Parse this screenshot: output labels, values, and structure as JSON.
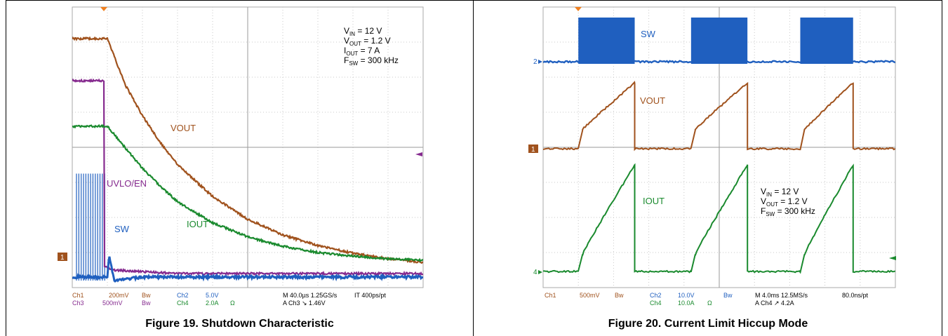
{
  "figures": [
    {
      "caption": "Figure 19. Shutdown Characteristic",
      "conditions": [
        "VIN = 12 V",
        "VOUT = 1.2 V",
        "IOUT = 7 A",
        "FSW = 300 kHz"
      ],
      "traces": [
        {
          "name": "VOUT",
          "color": "#a0521d"
        },
        {
          "name": "UVLO/EN",
          "color": "#862b8f"
        },
        {
          "name": "IOUT",
          "color": "#1a8a2e"
        },
        {
          "name": "SW",
          "color": "#1f5fbf"
        }
      ],
      "markers": [
        "1"
      ],
      "status_row1": [
        "Ch1",
        "200mV",
        "Bw",
        "Ch2",
        "5.0V",
        "M 40.0µs 1.25GS/s",
        "IT 400ps/pt"
      ],
      "status_row2": [
        "Ch3",
        "500mV",
        "Bw",
        "Ch4",
        "2.0A",
        "Ω",
        "A  Ch3  ↘  1.46V"
      ]
    },
    {
      "caption": "Figure 20. Current Limit Hiccup Mode",
      "conditions": [
        "VIN = 12 V",
        "VOUT = 1.2 V",
        "FSW = 300 kHz"
      ],
      "traces": [
        {
          "name": "SW",
          "color": "#1f5fbf"
        },
        {
          "name": "VOUT",
          "color": "#a0521d"
        },
        {
          "name": "IOUT",
          "color": "#1a8a2e"
        }
      ],
      "markers": [
        "2",
        "1",
        "4"
      ],
      "status_row1": [
        "Ch1",
        "500mV",
        "Bw",
        "Ch2",
        "10.0V",
        "Bw",
        "M 4.0ms 12.5MS/s",
        "80.0ns/pt"
      ],
      "status_row2": [
        "Ch4",
        "10.0A",
        "Ω",
        "A  Ch4  ↗  4.2A"
      ]
    }
  ],
  "chart_data": [
    {
      "type": "line",
      "title": "Figure 19. Shutdown Characteristic",
      "x_unit": "div (40.0 µs/div)",
      "x_range": [
        0,
        10
      ],
      "y_range": [
        0,
        8
      ],
      "series": [
        {
          "name": "VOUT",
          "points": [
            [
              0,
              7.1
            ],
            [
              1,
              7.1
            ],
            [
              1.5,
              5.8
            ],
            [
              2,
              4.9
            ],
            [
              2.5,
              4.15
            ],
            [
              3,
              3.5
            ],
            [
              4,
              2.6
            ],
            [
              5,
              1.95
            ],
            [
              6,
              1.5
            ],
            [
              7,
              1.2
            ],
            [
              8,
              0.98
            ],
            [
              9,
              0.82
            ],
            [
              10,
              0.72
            ]
          ]
        },
        {
          "name": "UVLO/EN",
          "points": [
            [
              0,
              5.9
            ],
            [
              0.9,
              5.9
            ],
            [
              0.92,
              0.6
            ],
            [
              1.2,
              0.5
            ],
            [
              3,
              0.4
            ],
            [
              6,
              0.4
            ],
            [
              10,
              0.4
            ]
          ]
        },
        {
          "name": "IOUT",
          "points": [
            [
              0,
              4.6
            ],
            [
              1,
              4.6
            ],
            [
              1.5,
              4.0
            ],
            [
              2,
              3.4
            ],
            [
              2.5,
              2.9
            ],
            [
              3,
              2.45
            ],
            [
              4,
              1.85
            ],
            [
              5,
              1.45
            ],
            [
              6,
              1.18
            ],
            [
              7,
              1.0
            ],
            [
              8,
              0.9
            ],
            [
              9,
              0.82
            ],
            [
              10,
              0.78
            ]
          ]
        },
        {
          "name": "SW",
          "points": [
            [
              0,
              0.3
            ],
            [
              1,
              0.3
            ],
            [
              1.05,
              0.9
            ],
            [
              1.2,
              0.2
            ],
            [
              2,
              0.3
            ],
            [
              10,
              0.3
            ]
          ]
        }
      ]
    },
    {
      "type": "line",
      "title": "Figure 20. Current Limit Hiccup Mode",
      "x_unit": "div (4.0 ms/div)",
      "x_range": [
        0,
        10
      ],
      "y_range": [
        0,
        8
      ],
      "series": [
        {
          "name": "SW",
          "bursts_div": [
            [
              1,
              2.6
            ],
            [
              4.2,
              5.8
            ],
            [
              7.3,
              8.8
            ]
          ]
        },
        {
          "name": "VOUT",
          "ramps_div": [
            [
              1,
              2.6
            ],
            [
              4.2,
              5.8
            ],
            [
              7.3,
              8.8
            ]
          ]
        },
        {
          "name": "IOUT",
          "ramps_div": [
            [
              1,
              2.6
            ],
            [
              4.2,
              5.8
            ],
            [
              7.3,
              8.8
            ]
          ]
        }
      ]
    }
  ]
}
